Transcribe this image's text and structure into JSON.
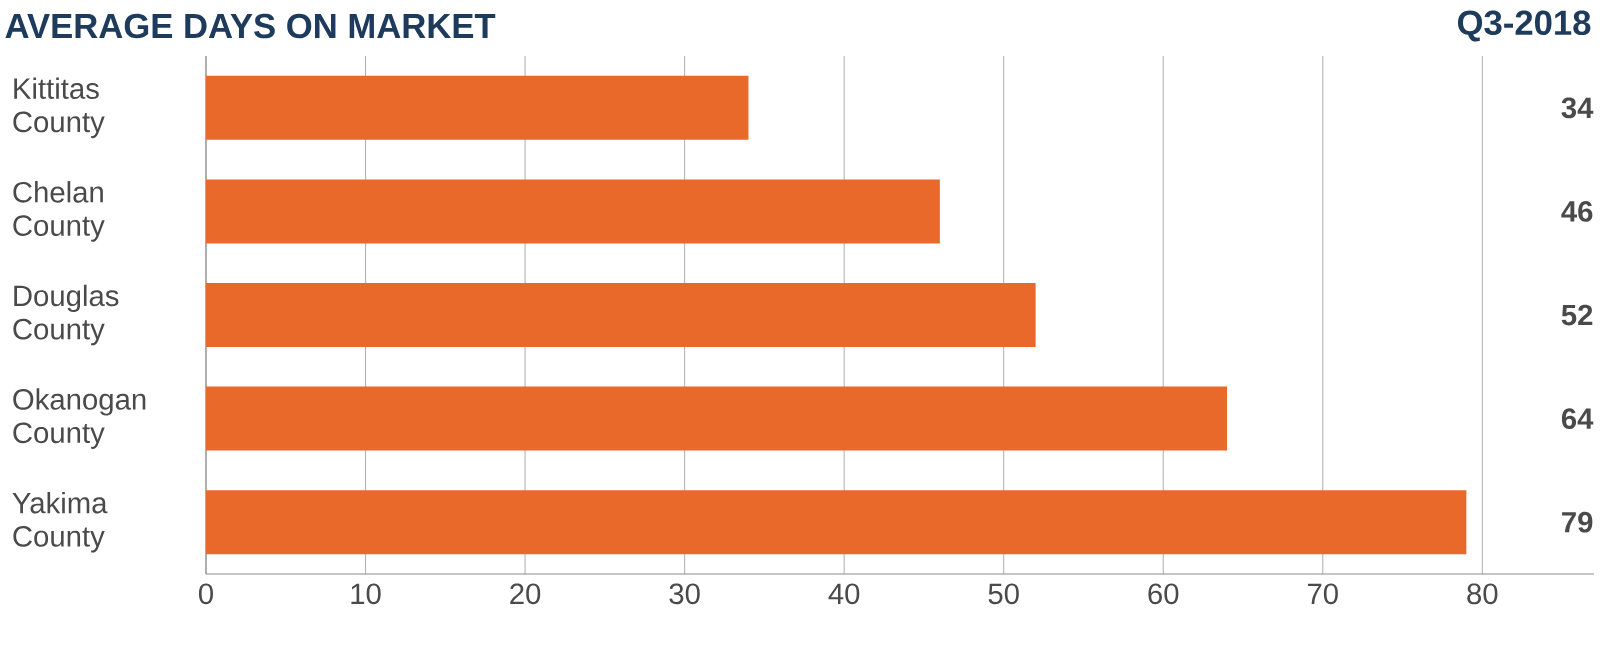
{
  "chart_data": {
    "type": "bar",
    "orientation": "horizontal",
    "title": "AVERAGE DAYS ON MARKET",
    "subtitle": "Q3-2018",
    "categories": [
      "Kittitas County",
      "Chelan County",
      "Douglas County",
      "Okanogan County",
      "Yakima County"
    ],
    "values": [
      34,
      46,
      52,
      64,
      79
    ],
    "value_labels": [
      "34",
      "46",
      "52",
      "64",
      "79"
    ],
    "color": "#e8692a",
    "xlim": [
      0,
      87
    ],
    "xticks": [
      0,
      10,
      20,
      30,
      40,
      50,
      60,
      70,
      80
    ],
    "grid": "x"
  }
}
